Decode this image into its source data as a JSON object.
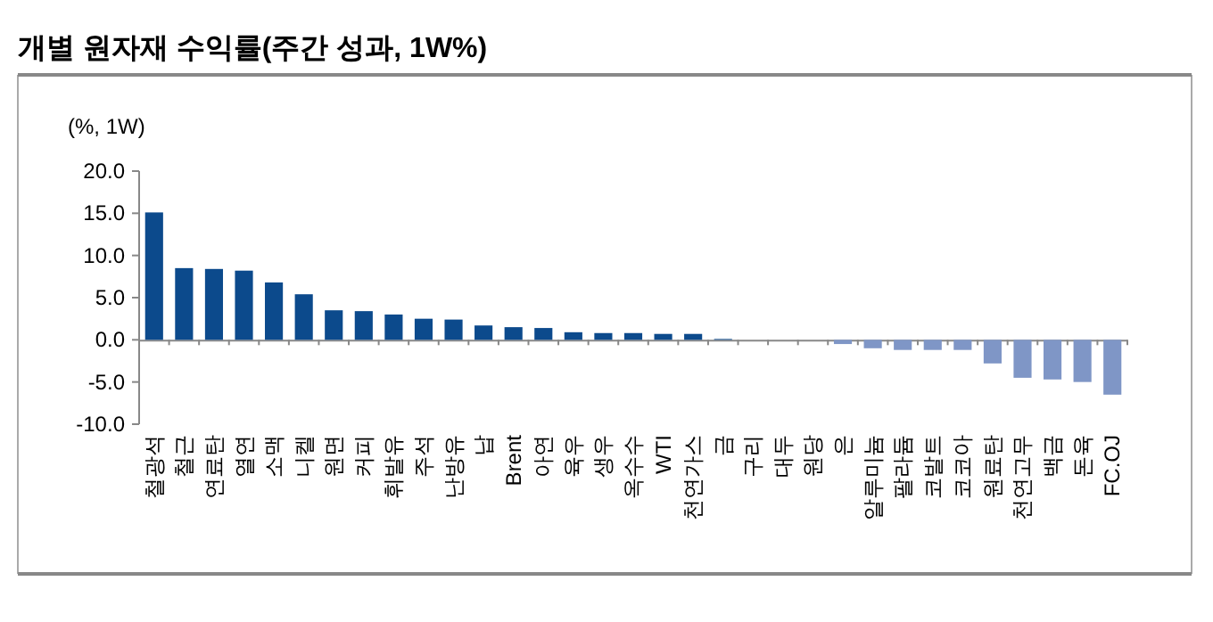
{
  "chart_data": {
    "type": "bar",
    "title": "개별 원자재 수익률(주간 성과, 1W%)",
    "ylabel": "(%, 1W)",
    "categories": [
      "철광석",
      "철근",
      "연료탄",
      "열연",
      "소맥",
      "니켈",
      "원면",
      "커피",
      "휘발유",
      "주석",
      "난방유",
      "납",
      "Brent",
      "아연",
      "육우",
      "생우",
      "옥수수",
      "WTI",
      "천연가스",
      "금",
      "구리",
      "대두",
      "원당",
      "은",
      "알루미늄",
      "팔라듐",
      "코발트",
      "코코아",
      "원료탄",
      "천연고무",
      "백금",
      "돈육",
      "FC.OJ"
    ],
    "values": [
      15.1,
      8.5,
      8.4,
      8.2,
      6.8,
      5.4,
      3.5,
      3.4,
      3.0,
      2.5,
      2.4,
      1.7,
      1.5,
      1.4,
      0.9,
      0.8,
      0.8,
      0.7,
      0.7,
      0.1,
      0,
      0,
      0,
      -0.5,
      -1.0,
      -1.2,
      -1.2,
      -1.2,
      -2.8,
      -4.5,
      -4.7,
      -5.0,
      -6.5
    ],
    "colors": [
      "#0c4a8c",
      "#0c4a8c",
      "#0c4a8c",
      "#0c4a8c",
      "#0c4a8c",
      "#0c4a8c",
      "#0c4a8c",
      "#0c4a8c",
      "#0c4a8c",
      "#0c4a8c",
      "#0c4a8c",
      "#0c4a8c",
      "#0c4a8c",
      "#0c4a8c",
      "#0c4a8c",
      "#0c4a8c",
      "#0c4a8c",
      "#0c4a8c",
      "#0c4a8c",
      "#0c4a8c",
      "#0c4a8c",
      "#0c4a8c",
      "#0c4a8c",
      "#7f96c6",
      "#7f96c6",
      "#7f96c6",
      "#7f96c6",
      "#7f96c6",
      "#7f96c6",
      "#7f96c6",
      "#7f96c6",
      "#7f96c6",
      "#7f96c6"
    ],
    "ylim": [
      -10,
      20
    ],
    "yticks": [
      {
        "value": -10,
        "label": "-10.0"
      },
      {
        "value": -5,
        "label": "-5.0"
      },
      {
        "value": 0,
        "label": "0.0"
      },
      {
        "value": 5,
        "label": "5.0"
      },
      {
        "value": 10,
        "label": "10.0"
      },
      {
        "value": 15,
        "label": "15.0"
      },
      {
        "value": 20,
        "label": "20.0"
      }
    ]
  }
}
